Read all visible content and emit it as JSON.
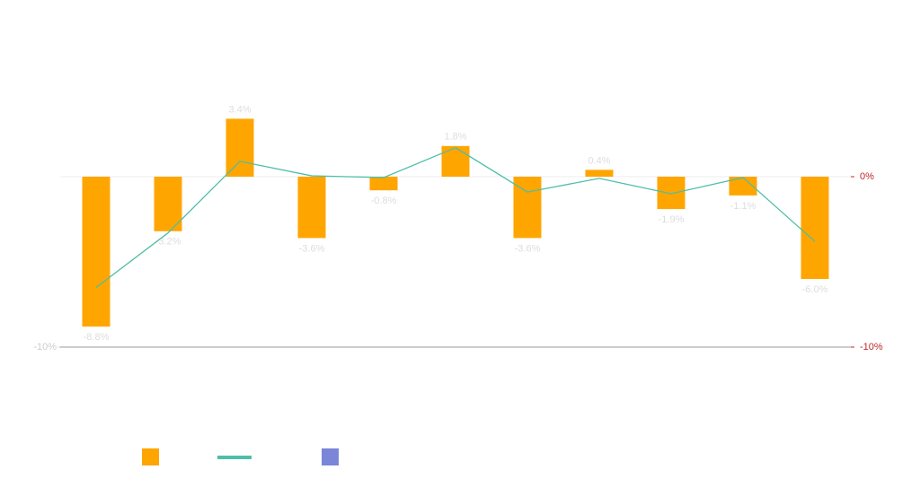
{
  "chart_data": {
    "type": "bar",
    "categories": [
      null,
      null,
      null,
      null,
      null,
      null,
      null,
      null,
      null,
      null,
      null
    ],
    "series": [
      {
        "type": "bar",
        "color": "#ffa500",
        "values": [
          -8.8,
          -3.2,
          3.4,
          -3.6,
          -0.8,
          1.8,
          -3.6,
          0.4,
          -1.9,
          -1.1,
          -6.0
        ],
        "value_labels": [
          "-8.8%",
          "-3.2%",
          "3.4%",
          "-3.6%",
          "-0.8%",
          "1.8%",
          "-3.6%",
          "0.4%",
          "-1.9%",
          "-1.1%",
          "-6.0%"
        ]
      },
      {
        "type": "line",
        "color": "#4dbfa6",
        "values": [
          -6.5,
          -3.3,
          0.9,
          0.05,
          -0.05,
          1.7,
          -0.9,
          -0.1,
          -1.0,
          -0.05,
          -3.8
        ]
      },
      {
        "type": "bar",
        "color": "#7b86d8",
        "values": [
          null,
          null,
          null,
          null,
          null,
          null,
          null,
          null,
          null,
          null,
          null
        ]
      }
    ],
    "ylim": [
      -10,
      5
    ],
    "yticks": [
      {
        "value": -10,
        "label": "-10%"
      }
    ],
    "y2lim": [
      -10,
      5
    ],
    "y2ticks": [
      {
        "value": 0,
        "label": "0%"
      },
      {
        "value": -10,
        "label": "-10%"
      }
    ]
  }
}
